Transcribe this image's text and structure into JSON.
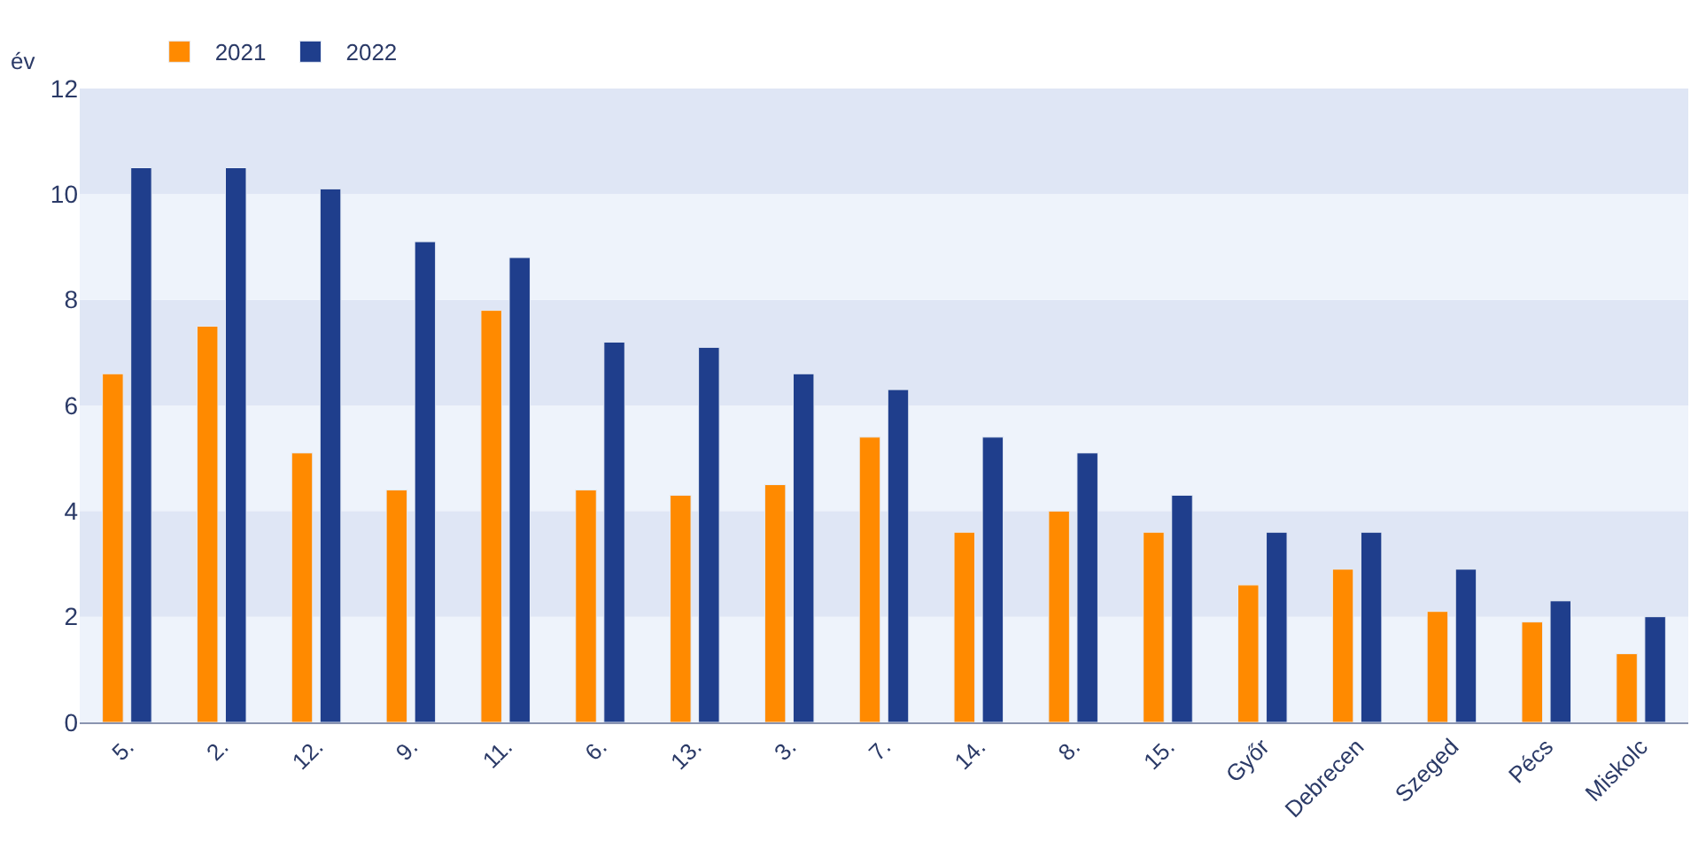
{
  "chart_data": {
    "type": "bar",
    "ylabel": "év",
    "categories": [
      "5.",
      "2.",
      "12.",
      "9.",
      "11.",
      "6.",
      "13.",
      "3.",
      "7.",
      "14.",
      "8.",
      "15.",
      "Győr",
      "Debrecen",
      "Szeged",
      "Pécs",
      "Miskolc"
    ],
    "series": [
      {
        "name": "2021",
        "color": "#ff8a00",
        "values": [
          6.6,
          7.5,
          5.1,
          4.4,
          7.8,
          4.4,
          4.3,
          4.5,
          5.4,
          3.6,
          4.0,
          3.6,
          2.6,
          2.9,
          2.1,
          1.9,
          1.3
        ]
      },
      {
        "name": "2022",
        "color": "#1f3e8c",
        "values": [
          10.5,
          10.5,
          10.1,
          9.1,
          8.8,
          7.2,
          7.1,
          6.6,
          6.3,
          5.4,
          5.1,
          4.3,
          3.6,
          3.6,
          2.9,
          2.3,
          2.0
        ]
      }
    ],
    "ylim": [
      0,
      12
    ],
    "yticks": [
      0,
      2,
      4,
      6,
      8,
      10,
      12
    ],
    "bands": [
      {
        "axis": "y",
        "from": 0,
        "to": 2,
        "color": "#eef3fb"
      },
      {
        "axis": "y",
        "from": 2,
        "to": 4,
        "color": "#dfe6f5"
      },
      {
        "axis": "y",
        "from": 4,
        "to": 6,
        "color": "#eef3fb"
      },
      {
        "axis": "y",
        "from": 6,
        "to": 8,
        "color": "#dfe6f5"
      },
      {
        "axis": "y",
        "from": 8,
        "to": 10,
        "color": "#eef3fb"
      },
      {
        "axis": "y",
        "from": 10,
        "to": 12,
        "color": "#dfe6f5"
      }
    ],
    "grid": false,
    "legend": "top left"
  }
}
